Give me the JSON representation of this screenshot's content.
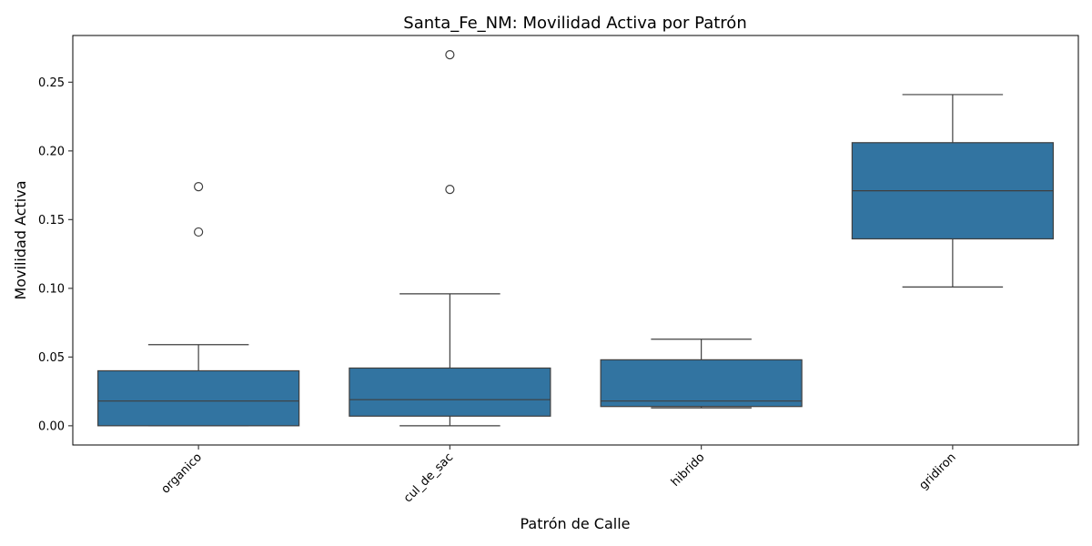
{
  "chart_data": {
    "type": "box",
    "title": "Santa_Fe_NM: Movilidad Activa por Patrón",
    "xlabel": "Patrón de Calle",
    "ylabel": "Movilidad Activa",
    "ylim": [
      -0.014,
      0.284
    ],
    "yticks": [
      0.0,
      0.05,
      0.1,
      0.15,
      0.2,
      0.25
    ],
    "ytick_labels": [
      "0.00",
      "0.05",
      "0.10",
      "0.15",
      "0.20",
      "0.25"
    ],
    "categories": [
      "organico",
      "cul_de_sac",
      "hibrido",
      "gridiron"
    ],
    "boxes": [
      {
        "category": "organico",
        "whisker_low": 0.0,
        "q1": 0.0,
        "median": 0.018,
        "q3": 0.04,
        "whisker_high": 0.059,
        "outliers": [
          0.141,
          0.174
        ]
      },
      {
        "category": "cul_de_sac",
        "whisker_low": 0.0,
        "q1": 0.007,
        "median": 0.019,
        "q3": 0.042,
        "whisker_high": 0.096,
        "outliers": [
          0.172,
          0.27
        ]
      },
      {
        "category": "hibrido",
        "whisker_low": 0.013,
        "q1": 0.014,
        "median": 0.018,
        "q3": 0.048,
        "whisker_high": 0.063,
        "outliers": []
      },
      {
        "category": "gridiron",
        "whisker_low": 0.101,
        "q1": 0.136,
        "median": 0.171,
        "q3": 0.206,
        "whisker_high": 0.241,
        "outliers": []
      }
    ],
    "grid": false,
    "colors": {
      "box": "#3274a1",
      "line": "#3f3f3f"
    }
  }
}
